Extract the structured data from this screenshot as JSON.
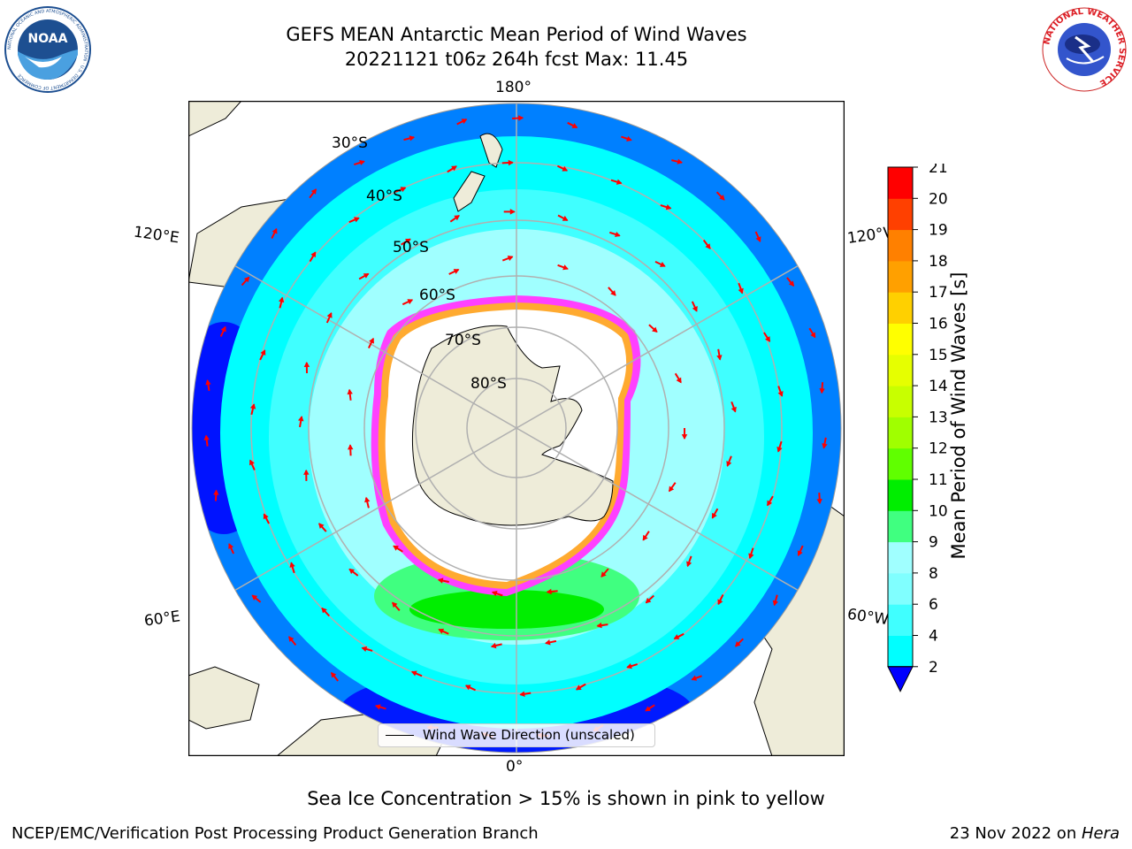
{
  "header": {
    "title_line1": "GEFS MEAN Antarctic Mean Period of Wind Waves",
    "title_line2": "20221121 t06z 264h fcst   Max: 11.45"
  },
  "logos": {
    "noaa_text": "NOAA",
    "noaa_ring_text": "NATIONAL OCEANIC AND ATMOSPHERIC ADMINISTRATION · U.S. DEPARTMENT OF COMMERCE",
    "nws_ring_text": "NATIONAL WEATHER SERVICE"
  },
  "map": {
    "projection": "south-polar-stereographic",
    "longitude_labels": {
      "top": "180°",
      "bottom": "0°",
      "upper_left": "120°E",
      "upper_right": "120°W",
      "lower_left": "60°E",
      "lower_right": "60°W"
    },
    "latitude_labels": [
      "30°S",
      "40°S",
      "50°S",
      "60°S",
      "70°S",
      "80°S"
    ],
    "colors": {
      "land": "#eeecd9",
      "ocean_deep": "#0000ff",
      "ocean_2_4": "#0080ff",
      "ocean_4_6": "#00ffff",
      "ocean_6_8": "#40ffff",
      "ocean_8_9": "#a0ffff",
      "swell_9_10": "#40ff80",
      "swell_10_11": "#00ee00",
      "sea_ice": "#ff40ff",
      "sea_ice_edge": "#ffaa30",
      "arrows": "#ff0000",
      "grid": "#b0b0b0"
    },
    "legend_text": "Wind Wave Direction (unscaled)"
  },
  "colorbar": {
    "title": "Mean Period of Wind Waves [s]",
    "ticks": [
      "2",
      "4",
      "6",
      "8",
      "9",
      "10",
      "11",
      "12",
      "13",
      "14",
      "15",
      "16",
      "17",
      "18",
      "19",
      "20",
      "21"
    ],
    "colors": [
      "#0080ff",
      "#00ffff",
      "#40ffff",
      "#80ffff",
      "#a0ffff",
      "#40ff80",
      "#00ee00",
      "#60ff00",
      "#a0ff00",
      "#c8ff00",
      "#e6ff00",
      "#ffff00",
      "#ffd000",
      "#ffa000",
      "#ff8000",
      "#ff4000",
      "#ff0000"
    ],
    "under_color": "#0000ff"
  },
  "subtitle": "Sea Ice Concentration > 15% is shown in pink to yellow",
  "footer": {
    "left": "NCEP/EMC/Verification Post Processing Product Generation Branch",
    "right_prefix": "23 Nov 2022 on ",
    "right_host": "Hera"
  }
}
